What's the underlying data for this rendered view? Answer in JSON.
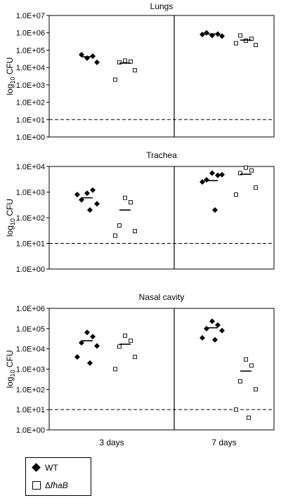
{
  "chart_data": [
    {
      "type": "scatter",
      "title": "Lungs",
      "ylabel": "log10 CFU",
      "ylabel_base": "log",
      "ylabel_sub": "10",
      "ylabel_rest": " CFU",
      "y_scale": "log",
      "ylim": [
        1,
        10000000
      ],
      "yticks": [
        1,
        10,
        100,
        1000,
        10000,
        100000,
        1000000,
        10000000
      ],
      "ytick_labels": [
        "1.0E+00",
        "1.0E+01",
        "1.0E+02",
        "1.0E+03",
        "1.0E+04",
        "1.0E+05",
        "1.0E+06",
        "1.0E+07"
      ],
      "detection_limit": 10,
      "groups": [
        {
          "time": "3 days",
          "series": [
            {
              "strain": "WT",
              "points": [
                35000,
                45000,
                55000,
                20000
              ],
              "median": 42000
            },
            {
              "strain": "fhaB",
              "points": [
                25000,
                22000,
                20000,
                7000,
                2000
              ],
              "median": 18000
            }
          ]
        },
        {
          "time": "7 days",
          "series": [
            {
              "strain": "WT",
              "points": [
                700000,
                850000,
                1000000,
                650000,
                800000
              ],
              "median": 850000
            },
            {
              "strain": "fhaB",
              "points": [
                350000,
                450000,
                700000,
                200000,
                250000
              ],
              "median": 380000
            }
          ]
        }
      ]
    },
    {
      "type": "scatter",
      "title": "Trachea",
      "ylabel": "log10 CFU",
      "ylabel_base": "log",
      "ylabel_sub": "10",
      "ylabel_rest": " CFU",
      "y_scale": "log",
      "ylim": [
        1,
        10000
      ],
      "yticks": [
        1,
        10,
        100,
        1000,
        10000
      ],
      "ytick_labels": [
        "1.0E+00",
        "1.0E+01",
        "1.0E+02",
        "1.0E+03",
        "1.0E+04"
      ],
      "detection_limit": 10,
      "groups": [
        {
          "time": "3 days",
          "series": [
            {
              "strain": "WT",
              "points": [
                900,
                1200,
                500,
                350,
                800,
                200
              ],
              "median": 600
            },
            {
              "strain": "fhaB",
              "points": [
                600,
                400,
                50,
                30,
                20
              ],
              "median": 200
            }
          ]
        },
        {
          "time": "7 days",
          "series": [
            {
              "strain": "WT",
              "points": [
                5500,
                4500,
                3000,
                4800,
                2500,
                200
              ],
              "median": 2800
            },
            {
              "strain": "fhaB",
              "points": [
                9000,
                7000,
                5500,
                1500,
                800
              ],
              "median": 5000
            }
          ]
        }
      ]
    },
    {
      "type": "scatter",
      "title": "Nasal cavity",
      "ylabel": "log10 CFU",
      "ylabel_base": "log",
      "ylabel_sub": "10",
      "ylabel_rest": " CFU",
      "y_scale": "log",
      "ylim": [
        1,
        1000000
      ],
      "yticks": [
        1,
        10,
        100,
        1000,
        10000,
        100000,
        1000000
      ],
      "ytick_labels": [
        "1.0E+00",
        "1.0E+01",
        "1.0E+02",
        "1.0E+03",
        "1.0E+04",
        "1.0E+05",
        "1.0E+06"
      ],
      "detection_limit": 10,
      "xtick_labels": [
        "3 days",
        "7 days"
      ],
      "groups": [
        {
          "time": "3 days",
          "series": [
            {
              "strain": "WT",
              "points": [
                65000,
                40000,
                20000,
                14000,
                4000,
                2000
              ],
              "median": 25000
            },
            {
              "strain": "fhaB",
              "points": [
                45000,
                25000,
                13000,
                4000,
                1000
              ],
              "median": 17000
            }
          ]
        },
        {
          "time": "7 days",
          "series": [
            {
              "strain": "WT",
              "points": [
                230000,
                150000,
                100000,
                80000,
                35000,
                28000
              ],
              "median": 110000
            },
            {
              "strain": "fhaB",
              "points": [
                3000,
                1500,
                250,
                100,
                10,
                4
              ],
              "median": 800
            }
          ]
        }
      ]
    }
  ],
  "legend": {
    "wt_label": "WT",
    "mut_prefix": "Δ",
    "mut_name": "fhaB"
  }
}
